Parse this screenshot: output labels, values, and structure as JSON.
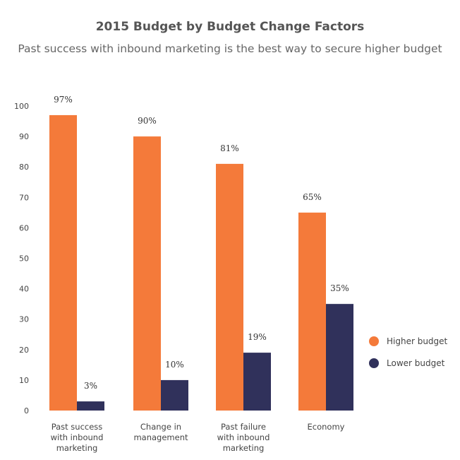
{
  "chart_data": {
    "type": "bar",
    "title": "2015 Budget by Budget Change Factors",
    "subtitle": "Past success with inbound marketing is the best way to secure higher budget",
    "categories": [
      [
        "Past success",
        "with inbound",
        "marketing"
      ],
      [
        "Change in",
        "management"
      ],
      [
        "Past failure",
        "with inbound",
        "marketing"
      ],
      [
        "Economy"
      ]
    ],
    "series": [
      {
        "name": "Higher budget",
        "color": "#f47a3a",
        "values": [
          97,
          90,
          81,
          65
        ],
        "labels": [
          "97%",
          "90%",
          "81%",
          "65%"
        ]
      },
      {
        "name": "Lower budget",
        "color": "#30315b",
        "values": [
          3,
          10,
          19,
          35
        ],
        "labels": [
          "3%",
          "10%",
          "19%",
          "35%"
        ]
      }
    ],
    "ylim": [
      0,
      100
    ],
    "yticks": [
      0,
      10,
      20,
      30,
      40,
      50,
      60,
      70,
      80,
      90,
      100
    ],
    "grid": false,
    "legend_position": "right"
  }
}
